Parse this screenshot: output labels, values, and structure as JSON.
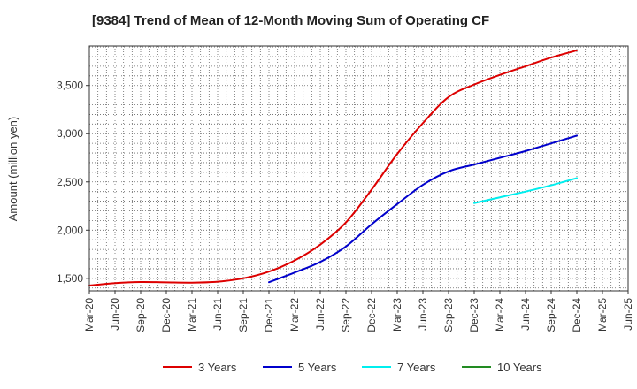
{
  "chart_data": {
    "type": "line",
    "title": "[9384]  Trend of Mean of 12-Month Moving Sum of Operating CF",
    "xlabel": "",
    "ylabel": "Amount (million yen)",
    "ylim": [
      1370,
      3910
    ],
    "yticks": [
      1500,
      2000,
      2500,
      3000,
      3500
    ],
    "ytick_labels": [
      "1,500",
      "2,000",
      "2,500",
      "3,000",
      "3,500"
    ],
    "x_categories": [
      "Mar-20",
      "Jun-20",
      "Sep-20",
      "Dec-20",
      "Mar-21",
      "Jun-21",
      "Sep-21",
      "Dec-21",
      "Mar-22",
      "Jun-22",
      "Sep-22",
      "Dec-22",
      "Mar-23",
      "Jun-23",
      "Sep-23",
      "Dec-23",
      "Mar-24",
      "Jun-24",
      "Sep-24",
      "Dec-24",
      "Mar-25",
      "Jun-25"
    ],
    "grid": true,
    "legend_position": "bottom",
    "series": [
      {
        "name": "3 Years",
        "color": "#dd0000",
        "points": [
          [
            0,
            1425
          ],
          [
            1,
            1450
          ],
          [
            2,
            1462
          ],
          [
            3,
            1458
          ],
          [
            4,
            1455
          ],
          [
            5,
            1465
          ],
          [
            6,
            1500
          ],
          [
            7,
            1570
          ],
          [
            8,
            1685
          ],
          [
            9,
            1850
          ],
          [
            10,
            2080
          ],
          [
            11,
            2420
          ],
          [
            12,
            2790
          ],
          [
            13,
            3110
          ],
          [
            14,
            3380
          ],
          [
            15,
            3510
          ],
          [
            16,
            3610
          ],
          [
            17,
            3700
          ],
          [
            18,
            3790
          ],
          [
            19,
            3865
          ]
        ]
      },
      {
        "name": "5 Years",
        "color": "#0000cc",
        "points": [
          [
            7,
            1460
          ],
          [
            8,
            1560
          ],
          [
            9,
            1670
          ],
          [
            10,
            1830
          ],
          [
            11,
            2060
          ],
          [
            12,
            2270
          ],
          [
            13,
            2470
          ],
          [
            14,
            2610
          ],
          [
            15,
            2680
          ],
          [
            16,
            2750
          ],
          [
            17,
            2820
          ],
          [
            18,
            2900
          ],
          [
            19,
            2980
          ]
        ]
      },
      {
        "name": "7 Years",
        "color": "#00eeee",
        "points": [
          [
            15,
            2280
          ],
          [
            16,
            2340
          ],
          [
            17,
            2400
          ],
          [
            18,
            2465
          ],
          [
            19,
            2540
          ]
        ]
      },
      {
        "name": "10 Years",
        "color": "#228b22",
        "points": []
      }
    ]
  }
}
